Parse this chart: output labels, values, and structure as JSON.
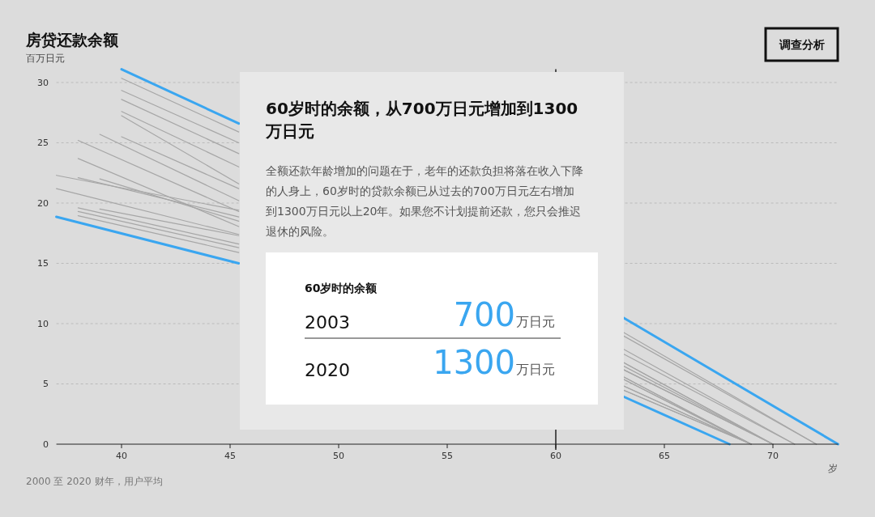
{
  "chart_data": {
    "type": "line",
    "title": "房贷还款余额",
    "ylabel": "百万日元",
    "xlabel": "岁",
    "xlim": [
      37,
      73
    ],
    "ylim": [
      0,
      31.1
    ],
    "xticks": [
      40,
      45,
      50,
      55,
      60,
      65,
      70
    ],
    "yticks": [
      0,
      5,
      10,
      15,
      20,
      25,
      30
    ],
    "grid": "y",
    "line_style": "solid",
    "marker": "none",
    "ref_lines": [
      {
        "axis": "x",
        "value": 60,
        "color": "#222222"
      }
    ],
    "series": [
      {
        "color": "#a6a6a6",
        "x": [
          40,
          45.4,
          54,
          63.1,
          72
        ],
        "values": [
          30.35,
          25.9,
          null,
          9.3,
          0
        ]
      },
      {
        "color": "#a6a6a6",
        "x": [
          40,
          45.4,
          54,
          63.1,
          72
        ],
        "values": [
          29.35,
          25.0,
          null,
          9.0,
          0
        ]
      },
      {
        "color": "#a6a6a6",
        "x": [
          40,
          45.4,
          54,
          63.1,
          71
        ],
        "values": [
          28.6,
          24.1,
          null,
          7.9,
          0
        ]
      },
      {
        "color": "#a6a6a6",
        "x": [
          40,
          45.4,
          54,
          63.1,
          71
        ],
        "values": [
          27.6,
          23.0,
          null,
          7.5,
          0
        ]
      },
      {
        "color": "#a6a6a6",
        "x": [
          40,
          45.4,
          54,
          63.1,
          70
        ],
        "values": [
          27.25,
          21.6,
          null,
          6.8,
          0
        ]
      },
      {
        "color": "#a6a6a6",
        "x": [
          40,
          45.4,
          54,
          63.1,
          70
        ],
        "values": [
          25.5,
          21.2,
          null,
          6.8,
          0
        ]
      },
      {
        "color": "#a6a6a6",
        "x": [
          39,
          45.4,
          54,
          63.1,
          70
        ],
        "values": [
          25.7,
          20.2,
          null,
          6.5,
          0
        ]
      },
      {
        "color": "#a6a6a6",
        "x": [
          37,
          45.4,
          54,
          63.1,
          70
        ],
        "values": [
          22.3,
          19.4,
          null,
          6.2,
          0
        ]
      },
      {
        "color": "#a6a6a6",
        "x": [
          38,
          45.4,
          54,
          63.1,
          70
        ],
        "values": [
          25.2,
          19.3,
          null,
          6.2,
          0
        ]
      },
      {
        "color": "#a6a6a6",
        "x": [
          38,
          45.4,
          54,
          63.1,
          69
        ],
        "values": [
          22.1,
          18.85,
          null,
          5.6,
          0
        ]
      },
      {
        "color": "#a6a6a6",
        "x": [
          39,
          45.4,
          54,
          63.1,
          69
        ],
        "values": [
          22.0,
          18.5,
          null,
          5.6,
          0
        ]
      },
      {
        "color": "#a6a6a6",
        "x": [
          38,
          45.4,
          54,
          63.1,
          69
        ],
        "values": [
          23.7,
          18.05,
          null,
          5.4,
          0
        ]
      },
      {
        "color": "#a6a6a6",
        "x": [
          37,
          45.4,
          54,
          63.1,
          69
        ],
        "values": [
          21.2,
          17.4,
          null,
          5.4,
          0
        ]
      },
      {
        "color": "#a6a6a6",
        "x": [
          39,
          45.4,
          54,
          63.1,
          69
        ],
        "values": [
          19.5,
          17.3,
          null,
          4.85,
          0
        ]
      },
      {
        "color": "#a6a6a6",
        "x": [
          38,
          45.4,
          54,
          63.1,
          69
        ],
        "values": [
          19.6,
          16.6,
          null,
          4.85,
          0
        ]
      },
      {
        "color": "#a6a6a6",
        "x": [
          38,
          45.4,
          54,
          63.1,
          69
        ],
        "values": [
          19.3,
          16.3,
          null,
          4.5,
          0
        ]
      },
      {
        "color": "#a6a6a6",
        "x": [
          38,
          45.4,
          54,
          63.1,
          69
        ],
        "values": [
          18.95,
          15.9,
          null,
          4.5,
          0
        ]
      },
      {
        "color": "#3aa6f0",
        "x": [
          40,
          45.4,
          54,
          63.1,
          73
        ],
        "values": [
          31.1,
          26.6,
          null,
          10.5,
          0
        ]
      },
      {
        "color": "#3aa6f0",
        "x": [
          37,
          45.4,
          54,
          63.1,
          68
        ],
        "values": [
          18.86,
          15.0,
          null,
          3.96,
          0
        ]
      }
    ],
    "annotations": [
      "2000 至 2020 财年，用户平均",
      "调查分析",
      "60岁时的余额，从700万日元增加到1300万日元",
      "全额还款年龄增加的问题在于，老年的还款负担将落在收入下降的人身上，60岁时的贷款余额已从过去的700万日元左右增加到1300万日元以上20年。如果您不计划提前还款，您只会推迟退休的风险。",
      "60岁时的余额",
      "2003",
      "700",
      "万日元",
      "2020",
      "1300",
      "万日元"
    ]
  }
}
